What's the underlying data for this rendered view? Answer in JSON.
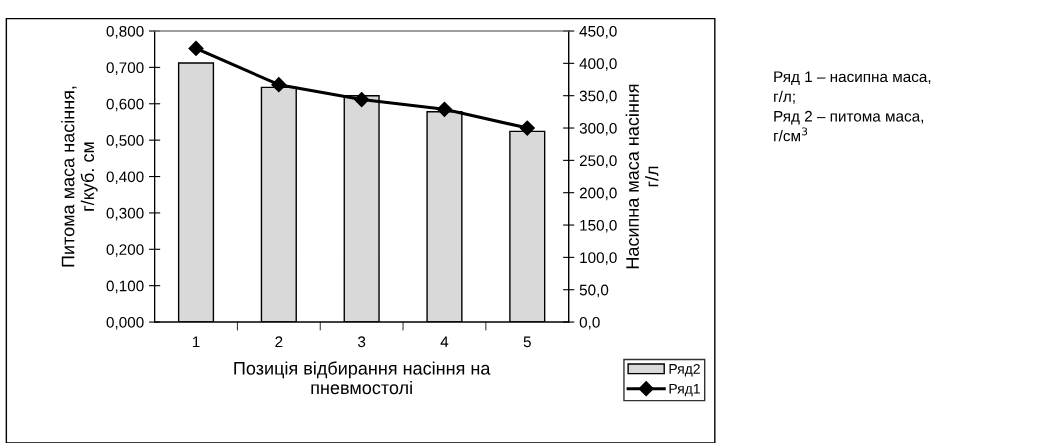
{
  "chart_data": {
    "type": "bar",
    "categories": [
      "1",
      "2",
      "3",
      "4",
      "5"
    ],
    "series": [
      {
        "name": "Ряд2",
        "color": "#d9d9d9",
        "values": [
          0.712,
          0.645,
          0.622,
          0.578,
          0.524
        ]
      },
      {
        "name": "Ряд1",
        "type": "line",
        "axis": "y2",
        "color": "#000000",
        "values": [
          423,
          367,
          344,
          329,
          300
        ]
      }
    ],
    "xlabel": "Позиція відбирання насіння на\nпневмостолі",
    "ylabel": "Питома маса насіння,\nг/куб. см",
    "y2label": "Насипна маса насіння\nг/л",
    "ylim": [
      0,
      0.8
    ],
    "yticks": [
      {
        "value": 0,
        "label": "0,000"
      },
      {
        "value": 0.1,
        "label": "0,100"
      },
      {
        "value": 0.2,
        "label": "0,200"
      },
      {
        "value": 0.3,
        "label": "0,300"
      },
      {
        "value": 0.4,
        "label": "0,400"
      },
      {
        "value": 0.5,
        "label": "0,500"
      },
      {
        "value": 0.6,
        "label": "0,600"
      },
      {
        "value": 0.7,
        "label": "0,700"
      },
      {
        "value": 0.8,
        "label": "0,800"
      }
    ],
    "y2lim": [
      0,
      450
    ],
    "y2ticks": [
      {
        "value": 0,
        "label": "0,0"
      },
      {
        "value": 50,
        "label": "50,0"
      },
      {
        "value": 100,
        "label": "100,0"
      },
      {
        "value": 150,
        "label": "150,0"
      },
      {
        "value": 200,
        "label": "200,0"
      },
      {
        "value": 250,
        "label": "250,0"
      },
      {
        "value": 300,
        "label": "300,0"
      },
      {
        "value": 350,
        "label": "350,0"
      },
      {
        "value": 400,
        "label": "400,0"
      },
      {
        "value": 450,
        "label": "450,0"
      }
    ],
    "marker": "diamond",
    "legend": "bottom right",
    "grid": false,
    "annotations": [
      "Ряд 1 – насипна маса,\nг/л;\nРяд 2 – питома маса,\nг/см$^{3}$"
    ]
  }
}
